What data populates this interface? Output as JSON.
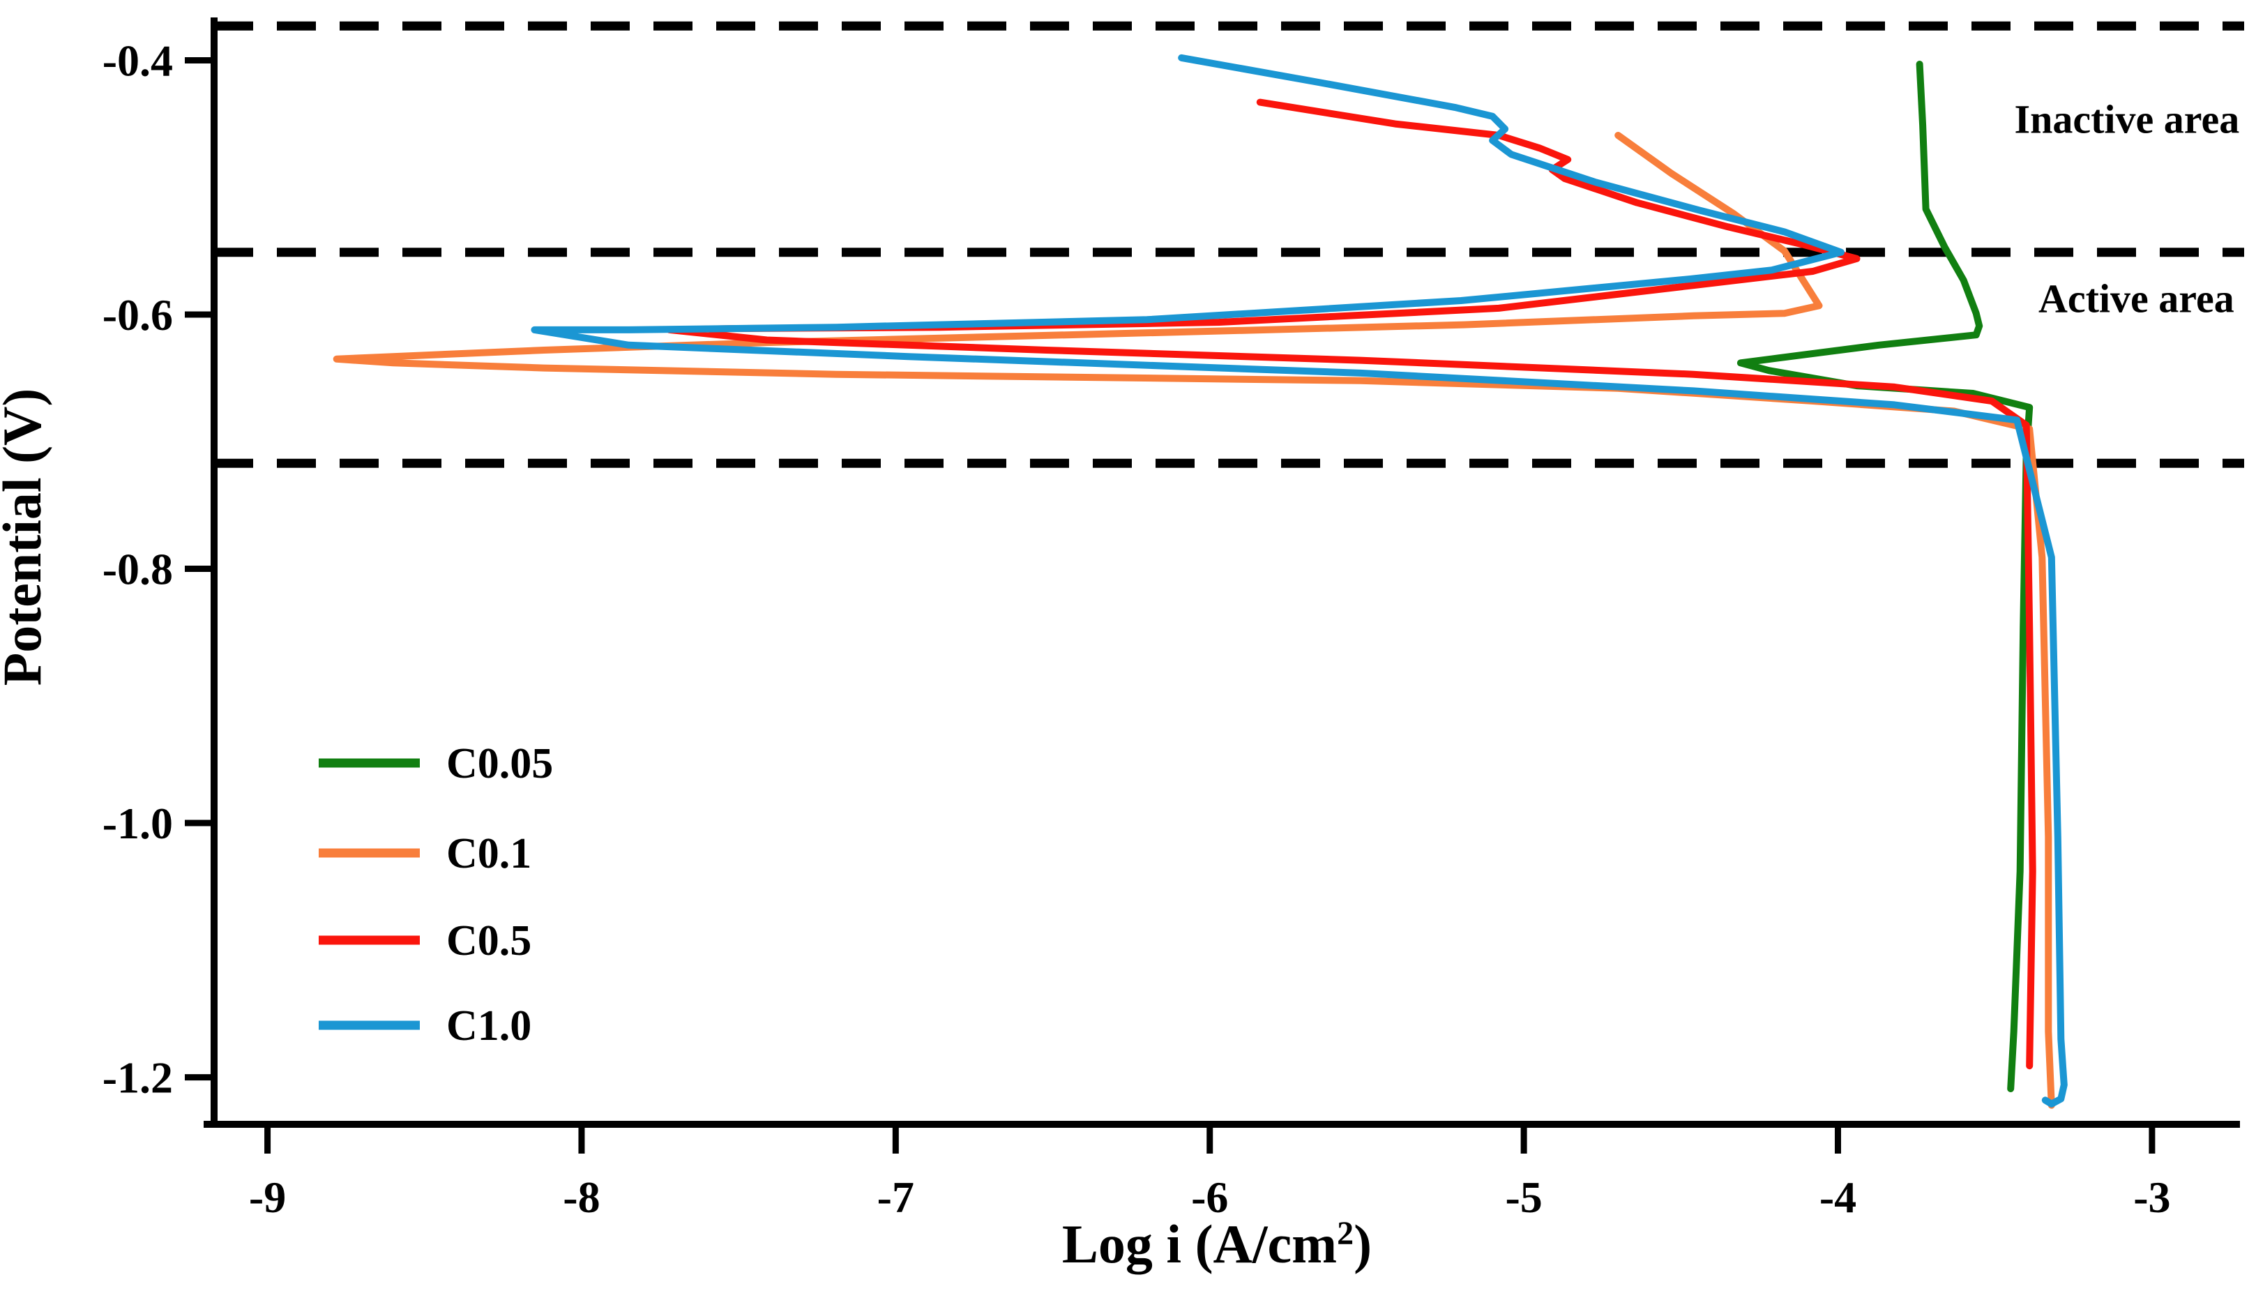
{
  "figure": {
    "xlabel_main": "Log i (A/cm",
    "xlabel_sup": "2",
    "xlabel_close": ")",
    "ylabel": "Potential (V)"
  },
  "chart_data": {
    "type": "line",
    "title": "",
    "xlabel": "Log i (A/cm2)",
    "ylabel": "Potential (V)",
    "xlim": [
      -9.17,
      -2.72
    ],
    "ylim": [
      -1.237,
      -0.369
    ],
    "grid": false,
    "legend_position": "lower-left-inside",
    "x_ticks": [
      {
        "v": -9,
        "label": "-9"
      },
      {
        "v": -8,
        "label": "-8"
      },
      {
        "v": -7,
        "label": "-7"
      },
      {
        "v": -6,
        "label": "-6"
      },
      {
        "v": -5,
        "label": "-5"
      },
      {
        "v": -4,
        "label": "-4"
      },
      {
        "v": -3,
        "label": "-3"
      }
    ],
    "y_ticks": [
      {
        "v": -0.4,
        "label": "-0.4"
      },
      {
        "v": -0.6,
        "label": "-0.6"
      },
      {
        "v": -0.8,
        "label": "-0.8"
      },
      {
        "v": -1.0,
        "label": "-1.0"
      },
      {
        "v": -1.2,
        "label": "-1.2"
      }
    ],
    "guide_lines": [
      -0.373,
      -0.551,
      -0.717
    ],
    "guide_line_color": "#000000",
    "annotations": [
      {
        "label": "Inactive area",
        "log": -3.08,
        "v": -0.446
      },
      {
        "label": "Active area",
        "log": -3.05,
        "v": -0.587
      }
    ],
    "series": [
      {
        "name": "C0.05",
        "color": "#117f11",
        "points": [
          [
            -3.74,
            -0.403
          ],
          [
            -3.73,
            -0.451
          ],
          [
            -3.72,
            -0.517
          ],
          [
            -3.66,
            -0.547
          ],
          [
            -3.6,
            -0.573
          ],
          [
            -3.56,
            -0.599
          ],
          [
            -3.55,
            -0.609
          ],
          [
            -3.56,
            -0.616
          ],
          [
            -3.87,
            -0.624
          ],
          [
            -4.31,
            -0.638
          ],
          [
            -4.22,
            -0.644
          ],
          [
            -3.94,
            -0.656
          ],
          [
            -3.57,
            -0.662
          ],
          [
            -3.39,
            -0.673
          ],
          [
            -3.4,
            -0.709
          ],
          [
            -3.41,
            -0.846
          ],
          [
            -3.42,
            -1.038
          ],
          [
            -3.44,
            -1.164
          ],
          [
            -3.45,
            -1.209
          ]
        ]
      },
      {
        "name": "C0.1",
        "color": "#f87e3b",
        "points": [
          [
            -4.7,
            -0.459
          ],
          [
            -4.53,
            -0.489
          ],
          [
            -4.33,
            -0.521
          ],
          [
            -4.17,
            -0.55
          ],
          [
            -4.06,
            -0.593
          ],
          [
            -4.17,
            -0.599
          ],
          [
            -4.46,
            -0.601
          ],
          [
            -5.19,
            -0.608
          ],
          [
            -6.3,
            -0.615
          ],
          [
            -7.41,
            -0.622
          ],
          [
            -8.12,
            -0.628
          ],
          [
            -8.6,
            -0.633
          ],
          [
            -8.78,
            -0.635
          ],
          [
            -8.6,
            -0.638
          ],
          [
            -8.12,
            -0.642
          ],
          [
            -7.19,
            -0.647
          ],
          [
            -5.52,
            -0.652
          ],
          [
            -4.7,
            -0.658
          ],
          [
            -4.08,
            -0.668
          ],
          [
            -3.63,
            -0.676
          ],
          [
            -3.39,
            -0.69
          ],
          [
            -3.35,
            -0.791
          ],
          [
            -3.33,
            -1.011
          ],
          [
            -3.33,
            -1.164
          ],
          [
            -3.32,
            -1.222
          ]
        ]
      },
      {
        "name": "C0.5",
        "color": "#fa150c",
        "points": [
          [
            -5.84,
            -0.433
          ],
          [
            -5.41,
            -0.45
          ],
          [
            -5.08,
            -0.459
          ],
          [
            -4.95,
            -0.469
          ],
          [
            -4.86,
            -0.478
          ],
          [
            -4.91,
            -0.486
          ],
          [
            -4.87,
            -0.493
          ],
          [
            -4.64,
            -0.512
          ],
          [
            -4.35,
            -0.531
          ],
          [
            -4.11,
            -0.545
          ],
          [
            -3.94,
            -0.556
          ],
          [
            -4.08,
            -0.566
          ],
          [
            -4.46,
            -0.577
          ],
          [
            -5.08,
            -0.595
          ],
          [
            -5.97,
            -0.606
          ],
          [
            -6.86,
            -0.61
          ],
          [
            -7.52,
            -0.611
          ],
          [
            -7.72,
            -0.612
          ],
          [
            -7.41,
            -0.62
          ],
          [
            -6.52,
            -0.628
          ],
          [
            -5.52,
            -0.636
          ],
          [
            -4.46,
            -0.647
          ],
          [
            -3.82,
            -0.657
          ],
          [
            -3.51,
            -0.668
          ],
          [
            -3.4,
            -0.687
          ],
          [
            -3.39,
            -0.846
          ],
          [
            -3.38,
            -1.038
          ],
          [
            -3.39,
            -1.191
          ]
        ]
      },
      {
        "name": "C1.0",
        "color": "#1b96d3",
        "points": [
          [
            -6.09,
            -0.398
          ],
          [
            -5.66,
            -0.417
          ],
          [
            -5.22,
            -0.437
          ],
          [
            -5.1,
            -0.444
          ],
          [
            -5.06,
            -0.454
          ],
          [
            -5.1,
            -0.463
          ],
          [
            -5.04,
            -0.474
          ],
          [
            -4.77,
            -0.496
          ],
          [
            -4.44,
            -0.518
          ],
          [
            -4.17,
            -0.535
          ],
          [
            -3.99,
            -0.551
          ],
          [
            -4.21,
            -0.565
          ],
          [
            -4.47,
            -0.572
          ],
          [
            -5.2,
            -0.589
          ],
          [
            -6.2,
            -0.604
          ],
          [
            -7.19,
            -0.61
          ],
          [
            -7.85,
            -0.612
          ],
          [
            -8.15,
            -0.612
          ],
          [
            -7.85,
            -0.624
          ],
          [
            -6.96,
            -0.633
          ],
          [
            -5.52,
            -0.646
          ],
          [
            -4.46,
            -0.66
          ],
          [
            -3.82,
            -0.671
          ],
          [
            -3.43,
            -0.683
          ],
          [
            -3.32,
            -0.791
          ],
          [
            -3.3,
            -1.011
          ],
          [
            -3.29,
            -1.17
          ],
          [
            -3.28,
            -1.206
          ],
          [
            -3.29,
            -1.217
          ],
          [
            -3.32,
            -1.221
          ],
          [
            -3.34,
            -1.218
          ]
        ]
      }
    ]
  }
}
